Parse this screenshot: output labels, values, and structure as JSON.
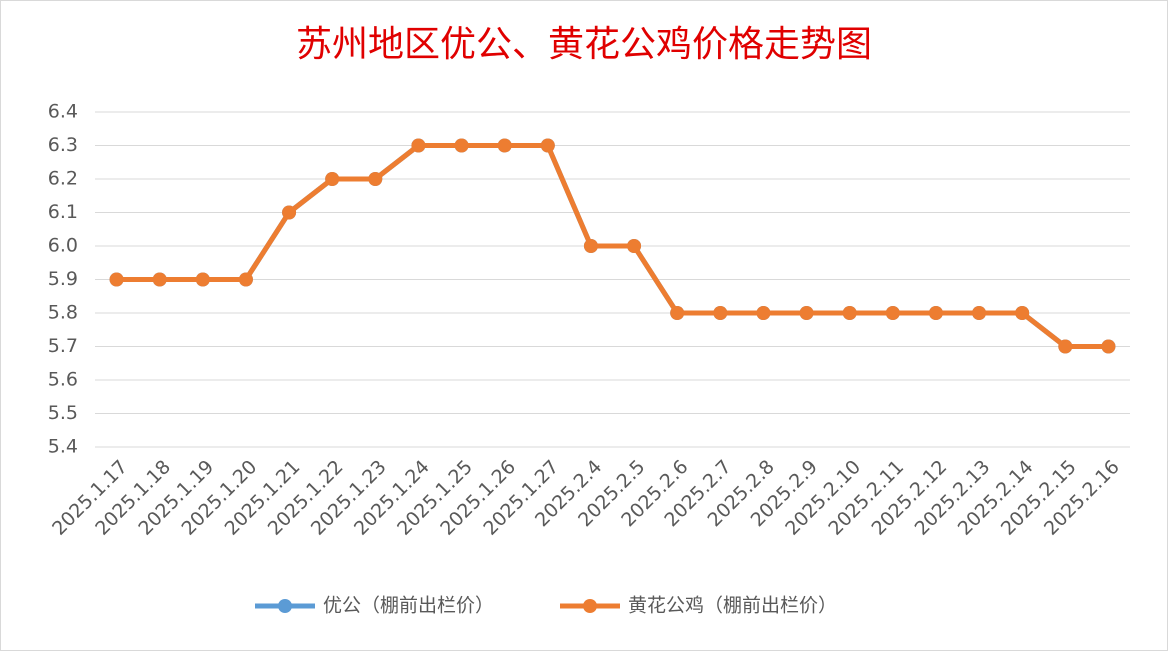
{
  "chart_data": {
    "type": "line",
    "title": "苏州地区优公、黄花公鸡价格走势图",
    "categories": [
      "2025.1.17",
      "2025.1.18",
      "2025.1.19",
      "2025.1.20",
      "2025.1.21",
      "2025.1.22",
      "2025.1.23",
      "2025.1.24",
      "2025.1.25",
      "2025.1.26",
      "2025.1.27",
      "2025.2.4",
      "2025.2.5",
      "2025.2.6",
      "2025.2.7",
      "2025.2.8",
      "2025.2.9",
      "2025.2.10",
      "2025.2.11",
      "2025.2.12",
      "2025.2.13",
      "2025.2.14",
      "2025.2.15",
      "2025.2.16"
    ],
    "series": [
      {
        "name": "优公（棚前出栏价）",
        "color": "#5b9bd5",
        "values": [
          5.9,
          5.9,
          5.9,
          5.9,
          6.1,
          6.2,
          6.2,
          6.3,
          6.3,
          6.3,
          6.3,
          6.0,
          6.0,
          5.8,
          5.8,
          5.8,
          5.8,
          5.8,
          5.8,
          5.8,
          5.8,
          5.8,
          5.7,
          5.7
        ]
      },
      {
        "name": "黄花公鸡（棚前出栏价）",
        "color": "#ed7d31",
        "values": [
          5.9,
          5.9,
          5.9,
          5.9,
          6.1,
          6.2,
          6.2,
          6.3,
          6.3,
          6.3,
          6.3,
          6.0,
          6.0,
          5.8,
          5.8,
          5.8,
          5.8,
          5.8,
          5.8,
          5.8,
          5.8,
          5.8,
          5.7,
          5.7
        ]
      }
    ],
    "ylim": [
      5.4,
      6.4
    ],
    "yticks": [
      5.4,
      5.5,
      5.6,
      5.7,
      5.8,
      5.9,
      {
        "value": 6,
        "label": "6.0"
      },
      6.1,
      6.2,
      6.3,
      6.4
    ],
    "grid": true,
    "legend": "bottom"
  }
}
